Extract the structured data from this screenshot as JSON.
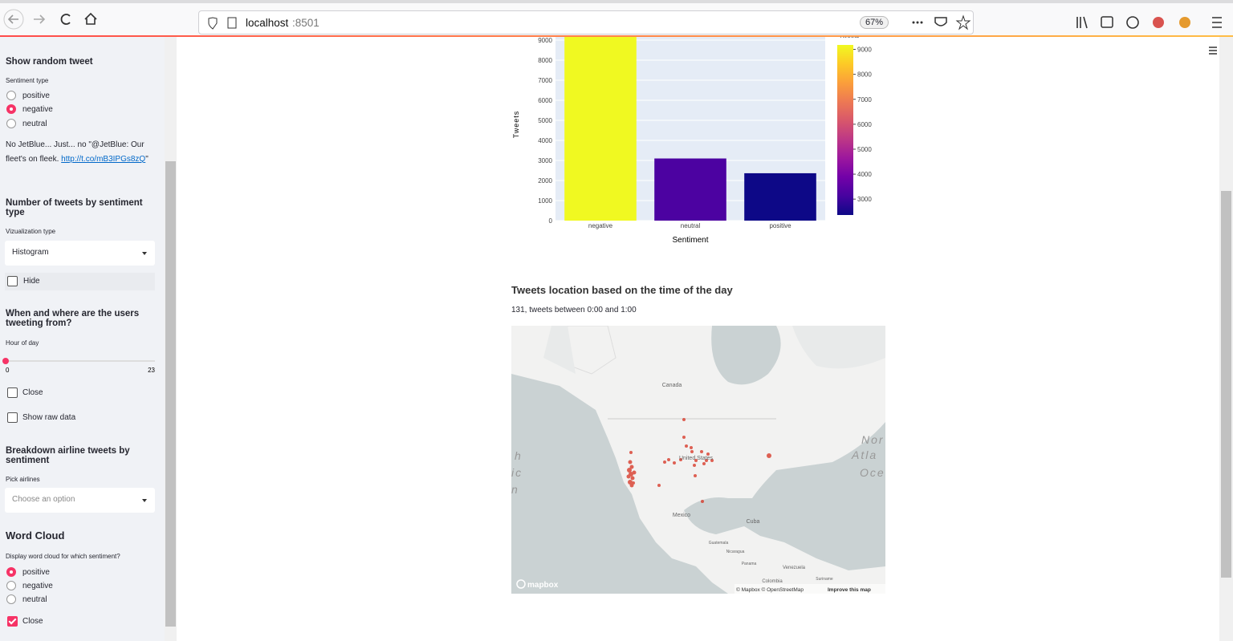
{
  "browser": {
    "host": "localhost",
    "port": ":8501",
    "zoom": "67%"
  },
  "sidebar": {
    "random": {
      "title": "Show random tweet",
      "label": "Sentiment type",
      "options": [
        "positive",
        "negative",
        "neutral"
      ],
      "selected": "negative",
      "tweet": "No JetBlue... Just... no \"@JetBlue: Our fleet's on fleek. ",
      "tweet_link": "http://t.co/mB3IPGs8zQ",
      "tweet_end": "\""
    },
    "count": {
      "title": "Number of tweets by sentiment type",
      "label": "Vizualization type",
      "select": "Histogram",
      "hide": "Hide",
      "hide_checked": false
    },
    "when": {
      "title": "When and where are the users tweeting from?",
      "label": "Hour of day",
      "slider": {
        "min": 0,
        "max": 23,
        "value": 0
      },
      "close": "Close",
      "close_checked": false,
      "raw": "Show raw data",
      "raw_checked": false
    },
    "breakdown": {
      "title": "Breakdown airline tweets by sentiment",
      "label": "Pick airlines",
      "placeholder": "Choose an option"
    },
    "cloud": {
      "title": "Word Cloud",
      "label": "Display word cloud for which sentiment?",
      "options": [
        "positive",
        "negative",
        "neutral"
      ],
      "selected": "positive",
      "close": "Close",
      "close_checked": true
    }
  },
  "main": {
    "map_title": "Tweets location based on the time of the day",
    "map_subtitle": "131, tweets between 0:00 and 1:00",
    "map": {
      "canada": "Canada",
      "us": "United States",
      "mexico": "Mexico",
      "cuba": "Cuba",
      "guatemala": "Guatemala",
      "nicaragua": "Nicaragua",
      "panama": "Panama",
      "venezuela": "Venezuela",
      "colombia": "Colombia",
      "suriname": "Suriname",
      "ocean_east": [
        "Nor",
        "Atla",
        "Oce"
      ],
      "ocean_west": [
        "h",
        "ic",
        "n"
      ],
      "logo": "mapbox",
      "attribution": "© Mapbox © OpenStreetMap",
      "improve": "Improve this map"
    }
  },
  "chart_data": {
    "type": "bar",
    "y_label": "Tweets",
    "x_label": "Sentiment",
    "categories": [
      "negative",
      "neutral",
      "positive"
    ],
    "values": [
      9178,
      3099,
      2363
    ],
    "colors": [
      "#f0f921",
      "#4c02a1",
      "#0d0887"
    ],
    "ylim": [
      0,
      9661
    ],
    "yticks": [
      0,
      1000,
      2000,
      3000,
      4000,
      5000,
      6000,
      7000,
      8000,
      9000
    ],
    "grid": true,
    "colorbar": {
      "title": "Tweets",
      "lim": [
        2363,
        9178
      ],
      "ticks": [
        3000,
        4000,
        5000,
        6000,
        7000,
        8000,
        9000
      ],
      "colorscale": [
        "#0d0887",
        "#46039f",
        "#7201a8",
        "#9c179e",
        "#bd3786",
        "#d8576b",
        "#ed7953",
        "#fb9f3a",
        "#fdca26",
        "#f0f921"
      ]
    }
  }
}
